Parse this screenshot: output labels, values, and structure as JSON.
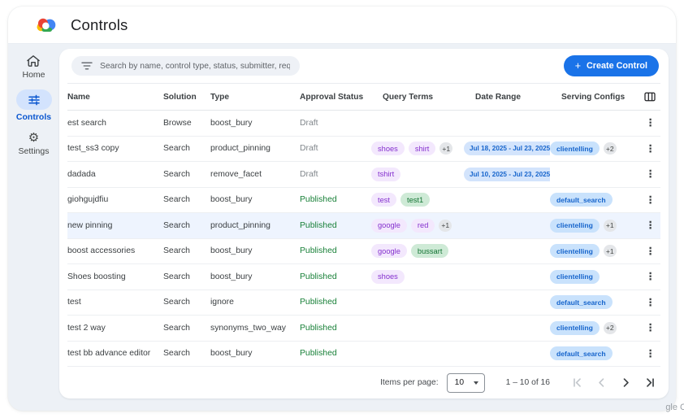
{
  "header": {
    "title": "Controls"
  },
  "sidebar": {
    "items": [
      {
        "id": "home",
        "label": "Home",
        "active": false
      },
      {
        "id": "controls",
        "label": "Controls",
        "active": true
      },
      {
        "id": "settings",
        "label": "Settings",
        "active": false
      }
    ]
  },
  "toolbar": {
    "search_placeholder": "Search by name, control type, status, submitter, requested on",
    "create_label": "Create Control"
  },
  "icons": {
    "plus_glyph": "+",
    "gear_glyph": "⚙",
    "kebab_glyph": "⋮"
  },
  "table": {
    "columns": [
      "Name",
      "Solution",
      "Type",
      "Approval Status",
      "Query Terms",
      "Date Range",
      "Serving Configs"
    ],
    "rows": [
      {
        "name": "est search",
        "solution": "Browse",
        "type": "boost_bury",
        "status": "Draft",
        "query_terms": [],
        "query_extra": null,
        "date_range": null,
        "serving_configs": [],
        "serving_extra": null,
        "highlighted": false
      },
      {
        "name": "test_ss3 copy",
        "solution": "Search",
        "type": "product_pinning",
        "status": "Draft",
        "query_terms": [
          {
            "text": "shoes",
            "color": "purple"
          },
          {
            "text": "shirt",
            "color": "purple"
          }
        ],
        "query_extra": "+1",
        "date_range": "Jul 18, 2025 - Jul 23, 2025",
        "serving_configs": [
          "clientelling"
        ],
        "serving_extra": "+2",
        "highlighted": false
      },
      {
        "name": "dadada",
        "solution": "Search",
        "type": "remove_facet",
        "status": "Draft",
        "query_terms": [
          {
            "text": "tshirt",
            "color": "purple"
          }
        ],
        "query_extra": null,
        "date_range": "Jul 10, 2025 - Jul 23, 2025",
        "serving_configs": [],
        "serving_extra": null,
        "highlighted": false
      },
      {
        "name": "giohgujdfiu",
        "solution": "Search",
        "type": "boost_bury",
        "status": "Published",
        "query_terms": [
          {
            "text": "test",
            "color": "purple"
          },
          {
            "text": "test1",
            "color": "green"
          }
        ],
        "query_extra": null,
        "date_range": null,
        "serving_configs": [
          "default_search"
        ],
        "serving_extra": null,
        "highlighted": false
      },
      {
        "name": "new pinning",
        "solution": "Search",
        "type": "product_pinning",
        "status": "Published",
        "query_terms": [
          {
            "text": "google",
            "color": "purple"
          },
          {
            "text": "red",
            "color": "purple"
          }
        ],
        "query_extra": "+1",
        "date_range": null,
        "serving_configs": [
          "clientelling"
        ],
        "serving_extra": "+1",
        "highlighted": true
      },
      {
        "name": "boost accessories",
        "solution": "Search",
        "type": "boost_bury",
        "status": "Published",
        "query_terms": [
          {
            "text": "google",
            "color": "purple"
          },
          {
            "text": "bussart",
            "color": "green"
          }
        ],
        "query_extra": null,
        "date_range": null,
        "serving_configs": [
          "clientelling"
        ],
        "serving_extra": "+1",
        "highlighted": false
      },
      {
        "name": "Shoes boosting",
        "solution": "Search",
        "type": "boost_bury",
        "status": "Published",
        "query_terms": [
          {
            "text": "shoes",
            "color": "purple"
          }
        ],
        "query_extra": null,
        "date_range": null,
        "serving_configs": [
          "clientelling"
        ],
        "serving_extra": null,
        "highlighted": false
      },
      {
        "name": "test",
        "solution": "Search",
        "type": "ignore",
        "status": "Published",
        "query_terms": [],
        "query_extra": null,
        "date_range": null,
        "serving_configs": [
          "default_search"
        ],
        "serving_extra": null,
        "highlighted": false
      },
      {
        "name": "test 2 way",
        "solution": "Search",
        "type": "synonyms_two_way",
        "status": "Published",
        "query_terms": [],
        "query_extra": null,
        "date_range": null,
        "serving_configs": [
          "clientelling"
        ],
        "serving_extra": "+2",
        "highlighted": false
      },
      {
        "name": "test bb advance editor",
        "solution": "Search",
        "type": "boost_bury",
        "status": "Published",
        "query_terms": [],
        "query_extra": null,
        "date_range": null,
        "serving_configs": [
          "default_search"
        ],
        "serving_extra": null,
        "highlighted": false
      }
    ]
  },
  "pagination": {
    "items_per_page_label": "Items per page:",
    "page_size": "10",
    "range": "1 – 10 of 16"
  },
  "corner_text": "gle C",
  "colors": {
    "accent": "#1a73e8",
    "published_green": "#188038",
    "draft_gray": "#80868b",
    "query_pill_bg": "#f3e8fd",
    "query_pill_text": "#8430ce",
    "green_pill_bg": "#ceead6",
    "green_pill_text": "#137333",
    "blue_pill_bg": "#c9e2fc",
    "blue_pill_text": "#1765cc",
    "badge_bg": "#e4e6e9",
    "highlight_row": "#eef4fe"
  }
}
